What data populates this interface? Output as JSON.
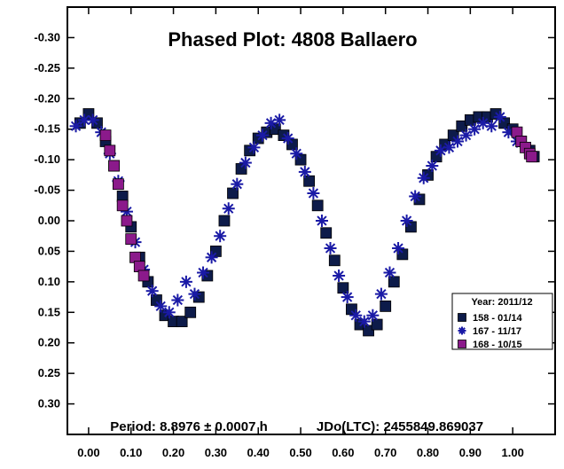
{
  "chart_data": {
    "type": "scatter",
    "title": "Phased Plot: 4808 Ballaero",
    "footer_left": "Period: 8.8976 ± 0.0007 h",
    "footer_right": "JDo(LTC): 2455849.869037",
    "xlabel": "",
    "ylabel": "",
    "xlim": [
      -0.05,
      1.1
    ],
    "ylim": [
      0.35,
      -0.35
    ],
    "y_inverted": true,
    "x_ticks": [
      "0.00",
      "0.10",
      "0.20",
      "0.30",
      "0.40",
      "0.50",
      "0.60",
      "0.70",
      "0.80",
      "0.90",
      "1.00"
    ],
    "x_tick_values": [
      0.0,
      0.1,
      0.2,
      0.3,
      0.4,
      0.5,
      0.6,
      0.7,
      0.8,
      0.9,
      1.0
    ],
    "y_ticks": [
      "-0.30",
      "-0.25",
      "-0.20",
      "-0.15",
      "-0.10",
      "-0.05",
      "0.00",
      "0.05",
      "0.10",
      "0.15",
      "0.20",
      "0.25",
      "0.30"
    ],
    "y_tick_values": [
      -0.3,
      -0.25,
      -0.2,
      -0.15,
      -0.1,
      -0.05,
      0.0,
      0.05,
      0.1,
      0.15,
      0.2,
      0.25,
      0.3
    ],
    "grid": false,
    "legend": {
      "title": "Year: 2011/12",
      "placement": "right",
      "entries": [
        {
          "label": "158 - 01/14",
          "marker": "square",
          "color": "#0d1b4a"
        },
        {
          "label": "167 - 11/17",
          "marker": "star",
          "color": "#1a1aa6"
        },
        {
          "label": "168 - 10/15",
          "marker": "square",
          "color": "#8b1a8b"
        }
      ]
    },
    "series": [
      {
        "marker": "square",
        "color": "#0d1b4a",
        "x": [
          -0.02,
          0.0,
          0.02,
          0.04,
          0.06,
          0.08,
          0.1,
          0.12,
          0.14,
          0.16,
          0.18,
          0.2,
          0.22,
          0.24,
          0.26,
          0.28,
          0.3,
          0.32,
          0.34,
          0.36,
          0.38,
          0.4,
          0.42,
          0.44,
          0.46,
          0.48,
          0.5,
          0.52,
          0.54,
          0.56,
          0.58,
          0.6,
          0.62,
          0.64,
          0.66,
          0.68,
          0.7,
          0.72,
          0.74,
          0.76,
          0.78,
          0.8,
          0.82,
          0.84,
          0.86,
          0.88,
          0.9,
          0.92,
          0.94,
          0.96,
          0.98,
          1.0,
          1.02,
          1.04,
          1.05
        ],
        "y": [
          -0.16,
          -0.175,
          -0.16,
          -0.13,
          -0.09,
          -0.04,
          0.01,
          0.06,
          0.1,
          0.13,
          0.155,
          0.165,
          0.165,
          0.15,
          0.125,
          0.09,
          0.05,
          0.0,
          -0.045,
          -0.085,
          -0.115,
          -0.135,
          -0.145,
          -0.15,
          -0.14,
          -0.125,
          -0.1,
          -0.065,
          -0.025,
          0.02,
          0.065,
          0.11,
          0.145,
          0.17,
          0.18,
          0.17,
          0.14,
          0.1,
          0.055,
          0.01,
          -0.035,
          -0.075,
          -0.105,
          -0.125,
          -0.14,
          -0.155,
          -0.165,
          -0.17,
          -0.17,
          -0.175,
          -0.16,
          -0.15,
          -0.13,
          -0.115,
          -0.105
        ]
      },
      {
        "marker": "star",
        "color": "#1a1aa6",
        "x": [
          -0.03,
          -0.01,
          0.01,
          0.03,
          0.05,
          0.07,
          0.09,
          0.11,
          0.13,
          0.15,
          0.17,
          0.19,
          0.21,
          0.23,
          0.25,
          0.27,
          0.29,
          0.31,
          0.33,
          0.35,
          0.37,
          0.39,
          0.41,
          0.43,
          0.45,
          0.47,
          0.49,
          0.51,
          0.53,
          0.55,
          0.57,
          0.59,
          0.61,
          0.63,
          0.65,
          0.67,
          0.69,
          0.71,
          0.73,
          0.75,
          0.77,
          0.79,
          0.81,
          0.83,
          0.85,
          0.87,
          0.89,
          0.91,
          0.93,
          0.95,
          0.97,
          0.99,
          1.01
        ],
        "y": [
          -0.155,
          -0.165,
          -0.165,
          -0.145,
          -0.11,
          -0.065,
          -0.015,
          0.035,
          0.08,
          0.115,
          0.14,
          0.15,
          0.13,
          0.1,
          0.12,
          0.085,
          0.06,
          0.025,
          -0.02,
          -0.06,
          -0.095,
          -0.12,
          -0.14,
          -0.16,
          -0.165,
          -0.135,
          -0.11,
          -0.08,
          -0.045,
          0.0,
          0.045,
          0.09,
          0.125,
          0.155,
          0.165,
          0.155,
          0.12,
          0.085,
          0.045,
          0.0,
          -0.04,
          -0.07,
          -0.09,
          -0.115,
          -0.12,
          -0.13,
          -0.14,
          -0.15,
          -0.16,
          -0.155,
          -0.17,
          -0.145,
          -0.13
        ]
      },
      {
        "marker": "square",
        "color": "#8b1a8b",
        "x": [
          0.04,
          0.05,
          0.06,
          0.07,
          0.08,
          0.09,
          0.1,
          0.11,
          0.12,
          0.13,
          1.01,
          1.02,
          1.03,
          1.04,
          1.045
        ],
        "y": [
          -0.14,
          -0.115,
          -0.09,
          -0.06,
          -0.025,
          0.0,
          0.03,
          0.06,
          0.075,
          0.09,
          -0.145,
          -0.13,
          -0.12,
          -0.11,
          -0.105
        ]
      }
    ]
  }
}
